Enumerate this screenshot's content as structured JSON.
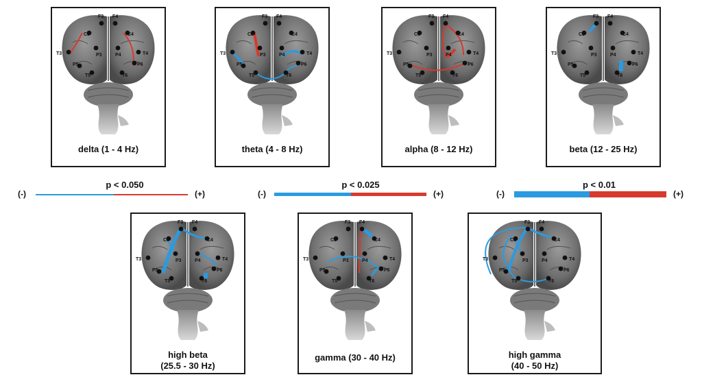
{
  "colors": {
    "negative": "#2a9be0",
    "positive": "#d63a2f",
    "frame": "#1a1a1a"
  },
  "electrodes": [
    "F3",
    "F4",
    "C3",
    "C4",
    "T3",
    "P3",
    "P4",
    "T4",
    "P5",
    "P6",
    "T5",
    "T6"
  ],
  "panels": [
    {
      "id": "delta",
      "caption_line1": "delta (1 - 4 Hz)",
      "caption_line2": ""
    },
    {
      "id": "theta",
      "caption_line1": "theta (4 - 8 Hz)",
      "caption_line2": ""
    },
    {
      "id": "alpha",
      "caption_line1": "alpha (8 - 12 Hz)",
      "caption_line2": ""
    },
    {
      "id": "beta",
      "caption_line1": "beta (12 - 25 Hz)",
      "caption_line2": ""
    },
    {
      "id": "high-beta",
      "caption_line1": "high beta",
      "caption_line2": "(25.5 - 30 Hz)"
    },
    {
      "id": "gamma",
      "caption_line1": "gamma (30 - 40 Hz)",
      "caption_line2": ""
    },
    {
      "id": "high-gamma",
      "caption_line1": "high gamma",
      "caption_line2": "(40 - 50 Hz)"
    }
  ],
  "legends": [
    {
      "p_label": "p < 0.050",
      "neg_label": "(-)",
      "pos_label": "(+)"
    },
    {
      "p_label": "p < 0.025",
      "neg_label": "(-)",
      "pos_label": "(+)"
    },
    {
      "p_label": "p < 0.01",
      "neg_label": "(-)",
      "pos_label": "(+)"
    }
  ]
}
